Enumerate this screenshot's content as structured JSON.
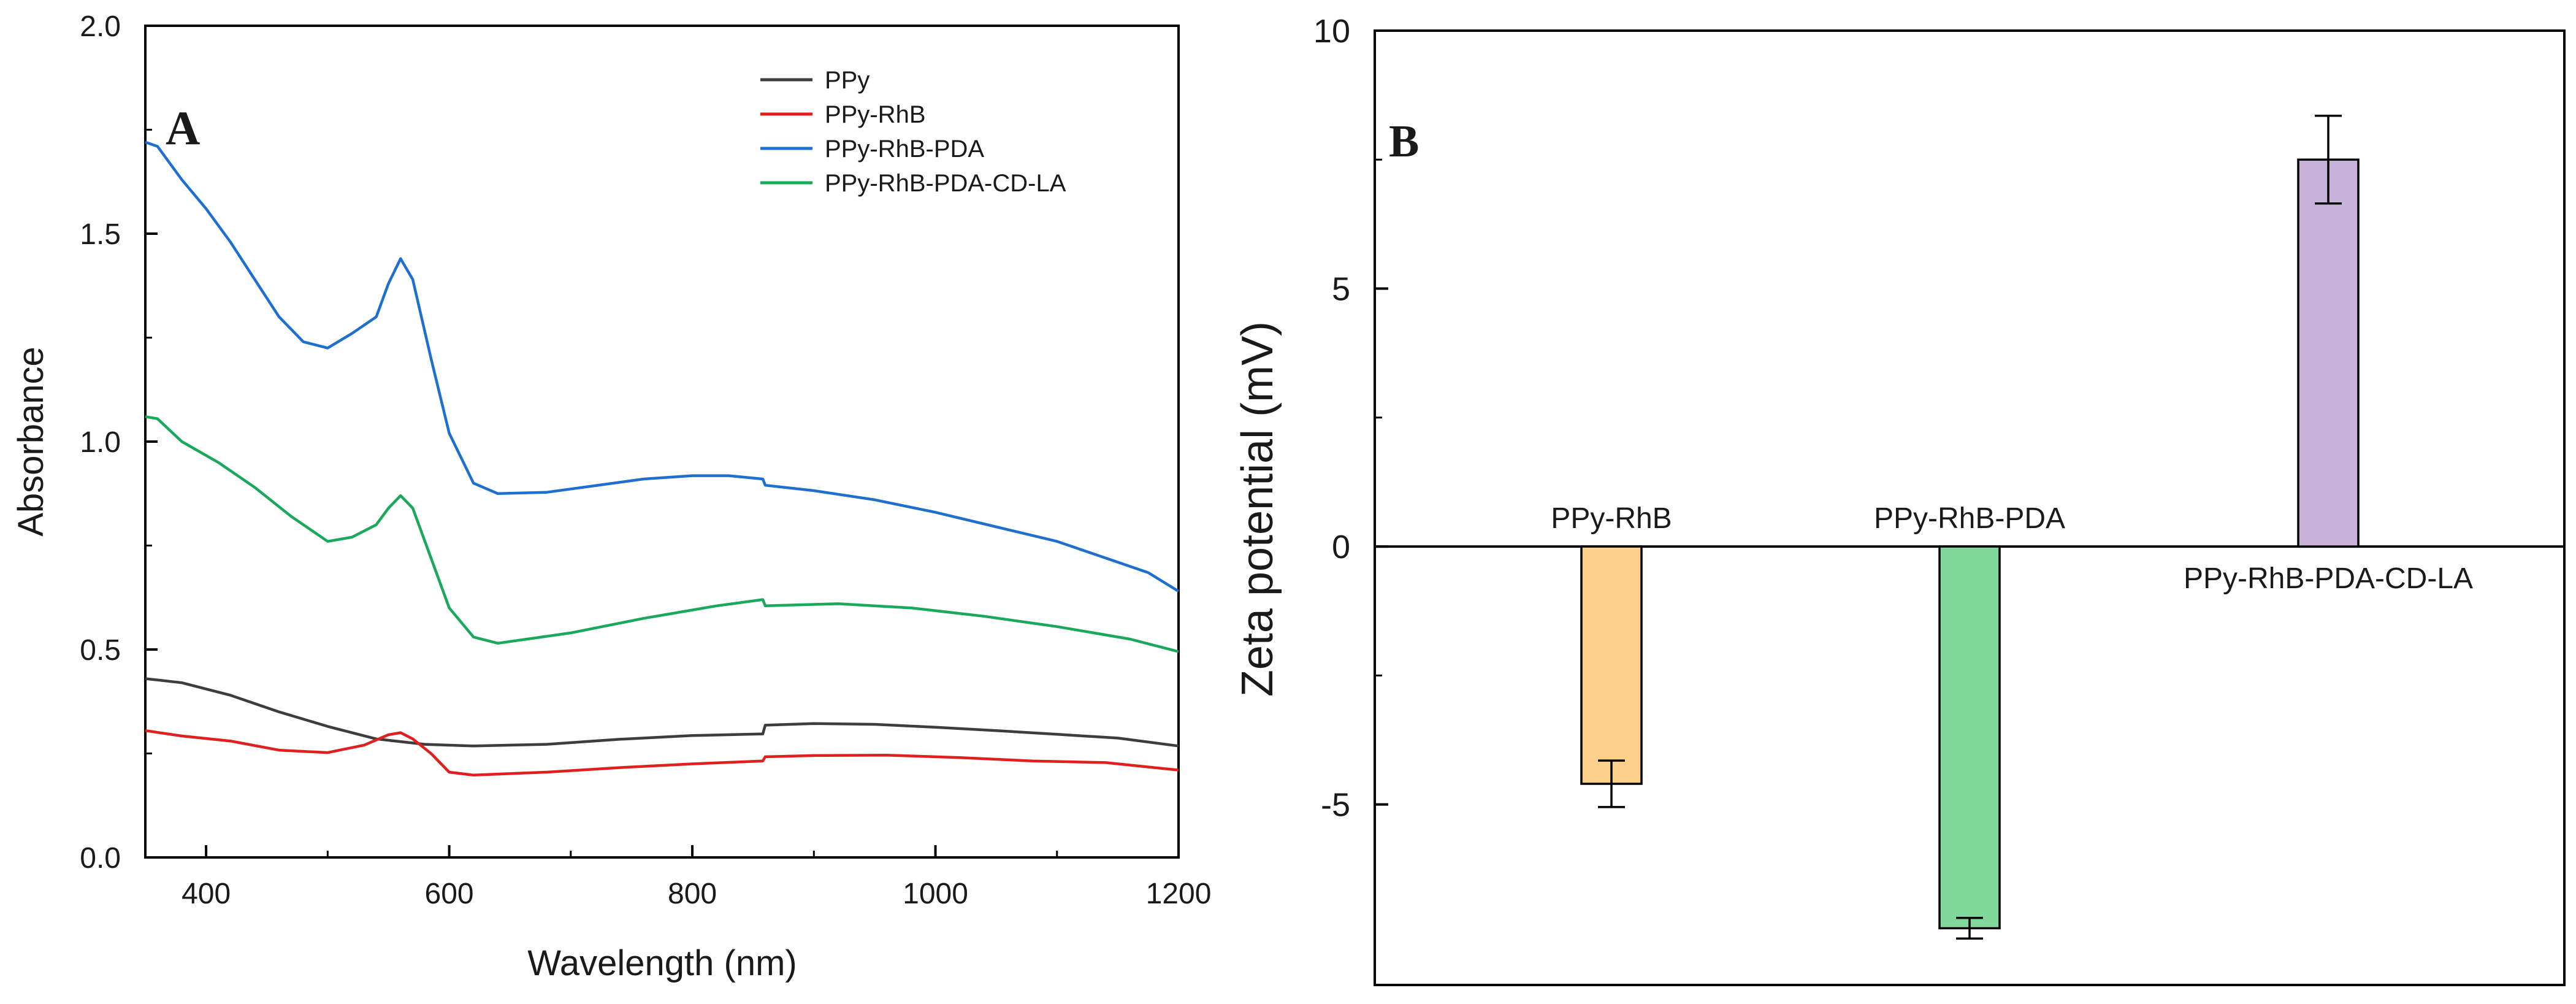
{
  "chart_data": [
    {
      "panel_label": "A",
      "type": "line",
      "xlabel": "Wavelength (nm)",
      "ylabel": "Absorbance",
      "xlim": [
        350,
        1200
      ],
      "ylim": [
        0.0,
        2.0
      ],
      "xticks": [
        400,
        600,
        800,
        1000,
        1200
      ],
      "yticks": [
        0.0,
        0.5,
        1.0,
        1.5,
        2.0
      ],
      "xtick_labels": [
        "400",
        "600",
        "800",
        "1000",
        "1200"
      ],
      "ytick_labels": [
        "0.0",
        "0.5",
        "1.0",
        "1.5",
        "2.0"
      ],
      "legend_position": "top-right",
      "series": [
        {
          "name": "PPy",
          "color": "#3d3d3d",
          "points": [
            [
              350,
              0.43
            ],
            [
              380,
              0.42
            ],
            [
              420,
              0.39
            ],
            [
              460,
              0.35
            ],
            [
              500,
              0.315
            ],
            [
              540,
              0.285
            ],
            [
              580,
              0.272
            ],
            [
              620,
              0.268
            ],
            [
              680,
              0.272
            ],
            [
              740,
              0.284
            ],
            [
              800,
              0.293
            ],
            [
              858,
              0.297
            ],
            [
              860,
              0.318
            ],
            [
              900,
              0.322
            ],
            [
              950,
              0.32
            ],
            [
              1000,
              0.313
            ],
            [
              1050,
              0.305
            ],
            [
              1100,
              0.296
            ],
            [
              1150,
              0.287
            ],
            [
              1200,
              0.268
            ]
          ]
        },
        {
          "name": "PPy-RhB",
          "color": "#e02020",
          "points": [
            [
              350,
              0.305
            ],
            [
              380,
              0.292
            ],
            [
              420,
              0.28
            ],
            [
              460,
              0.258
            ],
            [
              500,
              0.252
            ],
            [
              530,
              0.27
            ],
            [
              550,
              0.295
            ],
            [
              560,
              0.3
            ],
            [
              570,
              0.285
            ],
            [
              585,
              0.25
            ],
            [
              600,
              0.205
            ],
            [
              620,
              0.198
            ],
            [
              680,
              0.205
            ],
            [
              740,
              0.216
            ],
            [
              800,
              0.225
            ],
            [
              858,
              0.232
            ],
            [
              860,
              0.242
            ],
            [
              900,
              0.245
            ],
            [
              960,
              0.246
            ],
            [
              1020,
              0.24
            ],
            [
              1080,
              0.232
            ],
            [
              1140,
              0.228
            ],
            [
              1200,
              0.21
            ]
          ]
        },
        {
          "name": "PPy-RhB-PDA",
          "color": "#1f6fd0",
          "points": [
            [
              350,
              1.72
            ],
            [
              360,
              1.71
            ],
            [
              380,
              1.63
            ],
            [
              400,
              1.56
            ],
            [
              420,
              1.48
            ],
            [
              440,
              1.39
            ],
            [
              460,
              1.3
            ],
            [
              480,
              1.24
            ],
            [
              500,
              1.225
            ],
            [
              520,
              1.26
            ],
            [
              540,
              1.3
            ],
            [
              550,
              1.38
            ],
            [
              560,
              1.44
            ],
            [
              570,
              1.39
            ],
            [
              585,
              1.2
            ],
            [
              600,
              1.02
            ],
            [
              620,
              0.9
            ],
            [
              640,
              0.875
            ],
            [
              680,
              0.878
            ],
            [
              720,
              0.894
            ],
            [
              760,
              0.91
            ],
            [
              800,
              0.918
            ],
            [
              830,
              0.918
            ],
            [
              858,
              0.91
            ],
            [
              860,
              0.895
            ],
            [
              900,
              0.882
            ],
            [
              950,
              0.86
            ],
            [
              1000,
              0.83
            ],
            [
              1050,
              0.795
            ],
            [
              1100,
              0.76
            ],
            [
              1150,
              0.71
            ],
            [
              1175,
              0.685
            ],
            [
              1200,
              0.64
            ]
          ]
        },
        {
          "name": "PPy-RhB-PDA-CD-LA",
          "color": "#1aa85c",
          "points": [
            [
              350,
              1.06
            ],
            [
              360,
              1.055
            ],
            [
              380,
              1.0
            ],
            [
              410,
              0.95
            ],
            [
              440,
              0.89
            ],
            [
              470,
              0.82
            ],
            [
              500,
              0.76
            ],
            [
              520,
              0.77
            ],
            [
              540,
              0.8
            ],
            [
              550,
              0.84
            ],
            [
              560,
              0.87
            ],
            [
              570,
              0.84
            ],
            [
              585,
              0.72
            ],
            [
              600,
              0.6
            ],
            [
              620,
              0.53
            ],
            [
              640,
              0.515
            ],
            [
              700,
              0.54
            ],
            [
              760,
              0.575
            ],
            [
              820,
              0.605
            ],
            [
              858,
              0.62
            ],
            [
              860,
              0.605
            ],
            [
              920,
              0.61
            ],
            [
              980,
              0.6
            ],
            [
              1040,
              0.58
            ],
            [
              1100,
              0.555
            ],
            [
              1160,
              0.525
            ],
            [
              1200,
              0.495
            ]
          ]
        }
      ]
    },
    {
      "panel_label": "B",
      "type": "bar",
      "ylabel": "Zeta potential (mV)",
      "ylim": [
        -8.5,
        10
      ],
      "yticks": [
        -5,
        0,
        5,
        10
      ],
      "ytick_labels": [
        "-5",
        "0",
        "5",
        "10"
      ],
      "categories": [
        "PPy-RhB",
        "PPy-RhB-PDA",
        "PPy-RhB-PDA-CD-LA"
      ],
      "values": [
        -4.6,
        -7.4,
        7.5
      ],
      "errors": [
        0.45,
        0.2,
        0.85
      ],
      "colors": [
        "#fdd08c",
        "#7fd89a",
        "#c9b2da"
      ]
    }
  ]
}
